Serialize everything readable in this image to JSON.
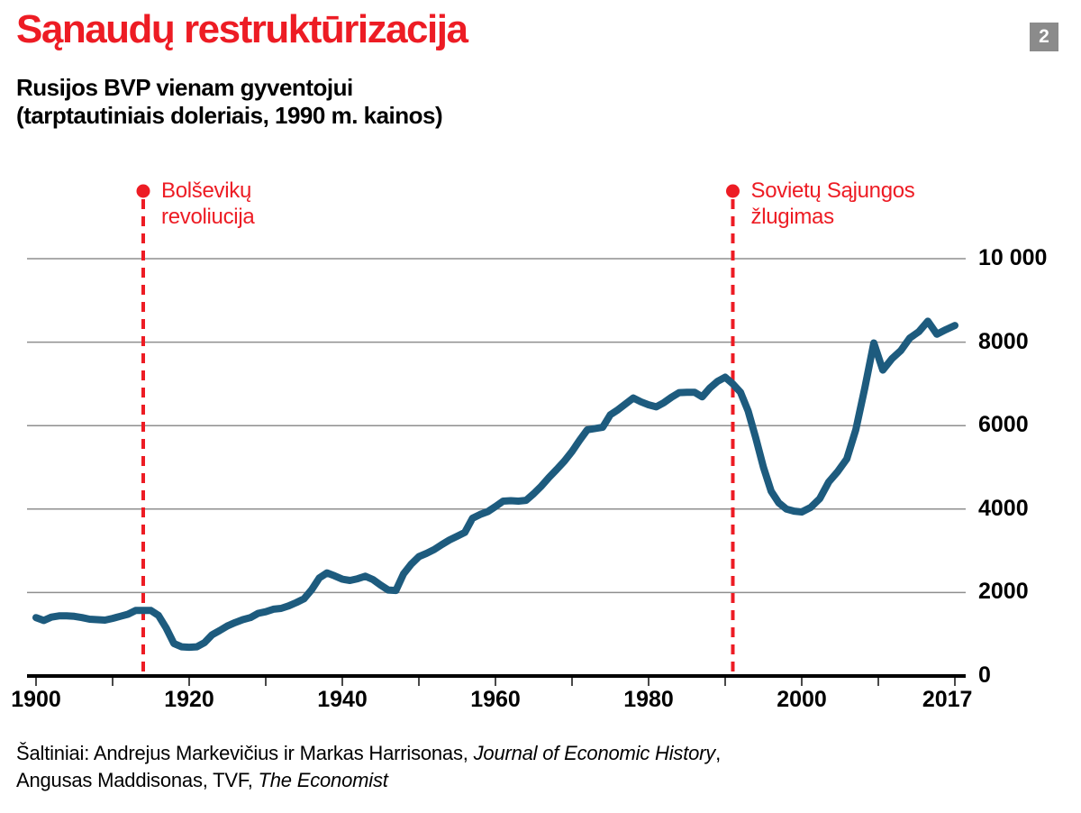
{
  "badge": "2",
  "title": "Sąnaudų restruktūrizacija",
  "subtitle_line1": "Rusijos BVP vienam gyventojui",
  "subtitle_line2": "(tarptautiniais doleriais, 1990 m. kainos)",
  "source": {
    "line1_prefix": "Šaltiniai: Andrejus Markevičius ir Markas Harrisonas, ",
    "line1_italic": "Journal of Economic History",
    "line1_suffix": ",",
    "line2_prefix": "Angusas Maddisonas, TVF, ",
    "line2_italic": "The Economist"
  },
  "colors": {
    "accent_red": "#ed1c24",
    "line_blue": "#1d5b7e",
    "badge_gray": "#8b8b8b",
    "grid_gray": "#8f8f8f",
    "tick_gray": "#4a4a4a",
    "axis_black": "#000000"
  },
  "chart_data": {
    "type": "line",
    "title": "Sąnaudų restruktūrizacija",
    "subtitle": "Rusijos BVP vienam gyventojui (tarptautiniais doleriais, 1990 m. kainos)",
    "xlabel": "",
    "ylabel": "",
    "grid": "horizontal",
    "legend": "none",
    "xlim": [
      1900,
      2017
    ],
    "ylim": [
      0,
      10600
    ],
    "x_tick_labels": [
      "1900",
      "1920",
      "1940",
      "1960",
      "1980",
      "2000",
      "2017"
    ],
    "y_tick_values": [
      0,
      2000,
      4000,
      6000,
      8000,
      10000
    ],
    "y_tick_labels": [
      "0",
      "2000",
      "4000",
      "6000",
      "8000",
      "10 000"
    ],
    "x": [
      1900,
      1901,
      1902,
      1903,
      1904,
      1905,
      1906,
      1907,
      1908,
      1909,
      1910,
      1911,
      1912,
      1913,
      1914,
      1915,
      1916,
      1917,
      1918,
      1919,
      1920,
      1921,
      1922,
      1923,
      1924,
      1925,
      1926,
      1927,
      1928,
      1929,
      1930,
      1931,
      1932,
      1933,
      1934,
      1935,
      1936,
      1937,
      1938,
      1939,
      1940,
      1941,
      1942,
      1943,
      1944,
      1945,
      1946,
      1947,
      1948,
      1949,
      1950,
      1951,
      1952,
      1953,
      1954,
      1955,
      1956,
      1957,
      1958,
      1959,
      1960,
      1961,
      1962,
      1963,
      1964,
      1965,
      1966,
      1967,
      1968,
      1969,
      1970,
      1971,
      1972,
      1973,
      1974,
      1975,
      1976,
      1977,
      1978,
      1979,
      1980,
      1981,
      1982,
      1983,
      1984,
      1985,
      1986,
      1987,
      1988,
      1989,
      1990,
      1991,
      1992,
      1993,
      1994,
      1995,
      1996,
      1997,
      1998,
      1999,
      2000,
      2001,
      2002,
      2003,
      2004,
      2005,
      2006,
      2007,
      2008,
      2009,
      2010,
      2011,
      2012,
      2013,
      2014,
      2015,
      2016,
      2017
    ],
    "values": [
      1400,
      1330,
      1410,
      1440,
      1440,
      1430,
      1400,
      1360,
      1350,
      1340,
      1380,
      1430,
      1480,
      1570,
      1570,
      1570,
      1450,
      1150,
      780,
      700,
      690,
      700,
      800,
      990,
      1090,
      1200,
      1280,
      1350,
      1400,
      1500,
      1540,
      1600,
      1620,
      1680,
      1760,
      1850,
      2070,
      2350,
      2470,
      2400,
      2320,
      2290,
      2330,
      2390,
      2310,
      2180,
      2060,
      2050,
      2450,
      2680,
      2860,
      2940,
      3030,
      3150,
      3260,
      3350,
      3440,
      3780,
      3870,
      3940,
      4060,
      4190,
      4200,
      4190,
      4210,
      4370,
      4550,
      4760,
      4950,
      5150,
      5380,
      5650,
      5900,
      5930,
      5960,
      6260,
      6380,
      6520,
      6660,
      6570,
      6500,
      6450,
      6550,
      6680,
      6790,
      6800,
      6800,
      6690,
      6900,
      7060,
      7160,
      7000,
      6800,
      6350,
      5700,
      5000,
      4430,
      4150,
      4000,
      3950,
      3930,
      4040,
      4250,
      4650,
      4900,
      5200,
      5900,
      6900,
      7980,
      7330,
      7600,
      7800,
      8100,
      8250,
      8500,
      8190,
      8300,
      8400
    ],
    "annotations": [
      {
        "year": 1914,
        "lines": [
          "Bolševikų",
          "revoliucija"
        ]
      },
      {
        "year": 1991,
        "lines": [
          "Sovietų Sąjungos",
          "žlugimas"
        ]
      }
    ]
  }
}
